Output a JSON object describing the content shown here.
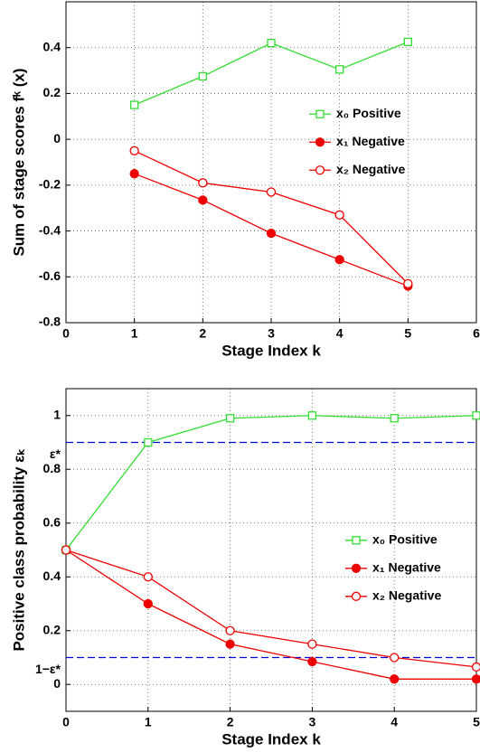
{
  "chart_data": [
    {
      "type": "line",
      "x_label": "Stage Index k",
      "y_label": "Sum of stage scores fᵏ (x)",
      "xlim": [
        0,
        6
      ],
      "xticks": [
        0,
        1,
        2,
        3,
        4,
        5,
        6
      ],
      "ylim": [
        -0.8,
        0.6
      ],
      "yticks": [
        -0.8,
        -0.6,
        -0.4,
        -0.2,
        0,
        0.2,
        0.4
      ],
      "grid": true,
      "legend": "right",
      "series": [
        {
          "name": "x₀ Positive",
          "color": "#33dd33",
          "marker": "square",
          "filled": false,
          "x": [
            1,
            2,
            3,
            4,
            5
          ],
          "values": [
            0.15,
            0.275,
            0.42,
            0.305,
            0.425
          ]
        },
        {
          "name": "x₁ Negative",
          "color": "#ee0000",
          "marker": "circle",
          "filled": true,
          "x": [
            1,
            2,
            3,
            4,
            5
          ],
          "values": [
            -0.15,
            -0.265,
            -0.41,
            -0.525,
            -0.64
          ]
        },
        {
          "name": "x₂ Negative",
          "color": "#ee0000",
          "marker": "circle",
          "filled": false,
          "x": [
            1,
            2,
            3,
            4,
            5
          ],
          "values": [
            -0.05,
            -0.19,
            -0.23,
            -0.33,
            -0.63
          ]
        }
      ]
    },
    {
      "type": "line",
      "x_label": "Stage Index k",
      "y_label": "Positive class probability εₖ",
      "xlim": [
        0,
        5
      ],
      "xticks": [
        0,
        1,
        2,
        3,
        4,
        5
      ],
      "ylim": [
        -0.1,
        1.1
      ],
      "yticks": [
        0,
        0.2,
        0.4,
        0.6,
        0.8,
        1
      ],
      "grid": true,
      "legend": "right",
      "reference_lines": [
        {
          "value": 0.9,
          "label": "ε*",
          "color": "#0000dd"
        },
        {
          "value": 0.1,
          "label": "1−ε*",
          "color": "#0000dd"
        }
      ],
      "series": [
        {
          "name": "x₀ Positive",
          "color": "#33dd33",
          "marker": "square",
          "filled": false,
          "x": [
            0,
            1,
            2,
            3,
            4,
            5
          ],
          "values": [
            0.5,
            0.9,
            0.99,
            1.0,
            0.99,
            1.0
          ]
        },
        {
          "name": "x₁ Negative",
          "color": "#ee0000",
          "marker": "circle",
          "filled": true,
          "x": [
            0,
            1,
            2,
            3,
            4,
            5
          ],
          "values": [
            0.5,
            0.3,
            0.15,
            0.085,
            0.02,
            0.02
          ]
        },
        {
          "name": "x₂ Negative",
          "color": "#ee0000",
          "marker": "circle",
          "filled": false,
          "x": [
            0,
            1,
            2,
            3,
            4,
            5
          ],
          "values": [
            0.5,
            0.4,
            0.2,
            0.15,
            0.1,
            0.065
          ]
        }
      ]
    }
  ]
}
